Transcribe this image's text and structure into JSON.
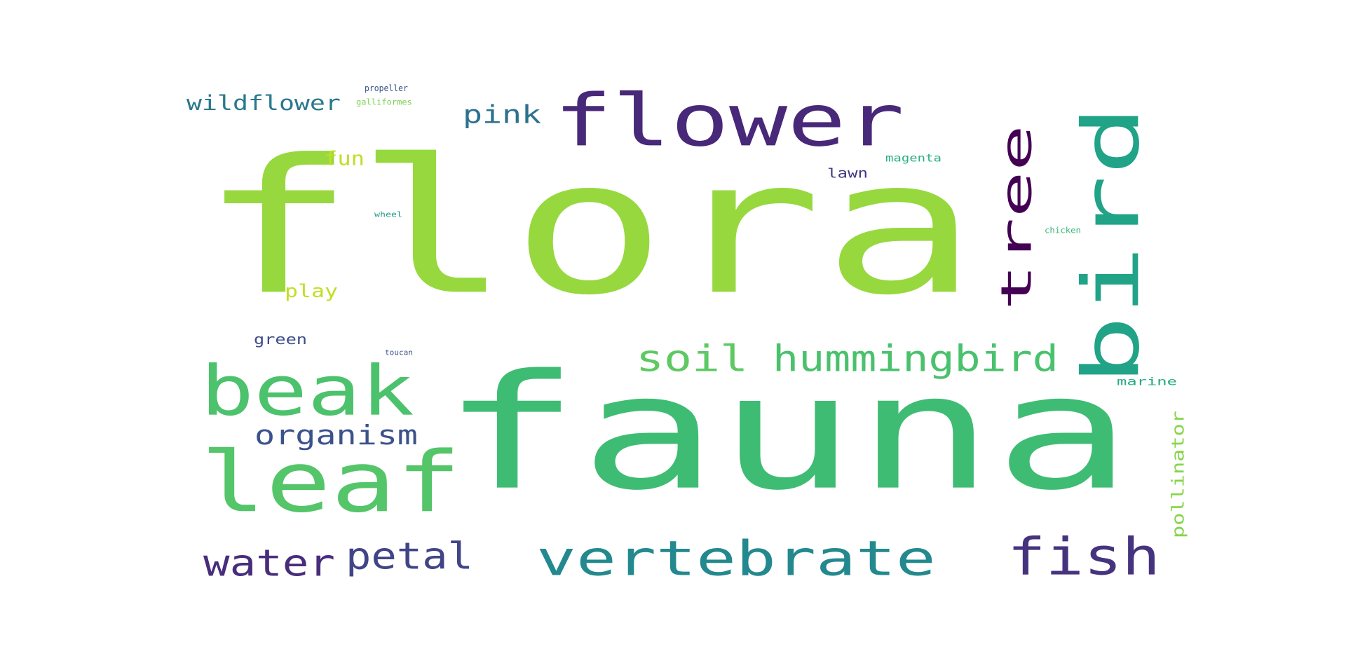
{
  "chart_data": {
    "type": "wordcloud",
    "background": "#ffffff",
    "colormap": "viridis",
    "words": [
      {
        "text": "flora",
        "color": "#97d83f"
      },
      {
        "text": "fauna",
        "color": "#3fbc73"
      },
      {
        "text": "flower",
        "color": "#482878"
      },
      {
        "text": "bird",
        "color": "#20a386"
      },
      {
        "text": "tree",
        "color": "#440154"
      },
      {
        "text": "beak",
        "color": "#4cc26c"
      },
      {
        "text": "leaf",
        "color": "#54c568"
      },
      {
        "text": "soil",
        "color": "#5ec962"
      },
      {
        "text": "hummingbird",
        "color": "#4ac16d"
      },
      {
        "text": "vertebrate",
        "color": "#23898e"
      },
      {
        "text": "fish",
        "color": "#46337e"
      },
      {
        "text": "water",
        "color": "#472d7b"
      },
      {
        "text": "petal",
        "color": "#414487"
      },
      {
        "text": "organism",
        "color": "#3b528b"
      },
      {
        "text": "pink",
        "color": "#2c728e"
      },
      {
        "text": "wildflower",
        "color": "#2a788e"
      },
      {
        "text": "fun",
        "color": "#bddf26"
      },
      {
        "text": "play",
        "color": "#c2df23"
      },
      {
        "text": "green",
        "color": "#3e4c8a"
      },
      {
        "text": "lawn",
        "color": "#453781"
      },
      {
        "text": "magenta",
        "color": "#2ab07f"
      },
      {
        "text": "propeller",
        "color": "#39568c"
      },
      {
        "text": "galliformes",
        "color": "#7ad151"
      },
      {
        "text": "wheel",
        "color": "#1f9a8a"
      },
      {
        "text": "chicken",
        "color": "#35b779"
      },
      {
        "text": "marine",
        "color": "#25ab82"
      },
      {
        "text": "pollinator",
        "color": "#86d549"
      },
      {
        "text": "toucan",
        "color": "#3d4e8a"
      }
    ]
  }
}
